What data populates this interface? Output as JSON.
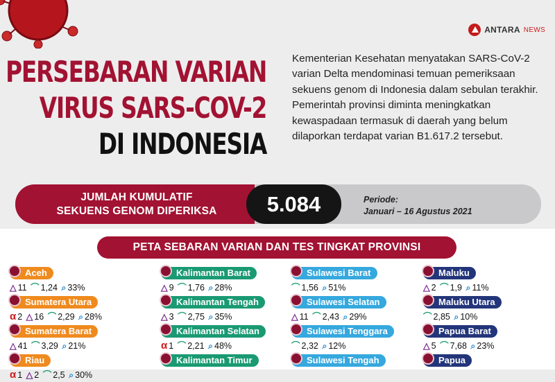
{
  "brand": {
    "name": "ANTARA",
    "suffix": "NEWS"
  },
  "title": {
    "line1": "PERSEBARAN VARIAN",
    "line2": "VIRUS SARS-COV-2",
    "line3": "DI INDONESIA"
  },
  "intro": "Kementerian Kesehatan menyatakan SARS-CoV-2 varian Delta mendominasi temuan pemeriksaan sekuens genom di Indonesia dalam sebulan terakhir. Pemerintah provinsi diminta meningkatkan kewaspadaan termasuk di daerah yang belum dilaporkan terdapat varian B1.617.2 tersebut.",
  "summary": {
    "label1": "JUMLAH KUMULATIF",
    "label2": "SEKUENS GENOM DIPERIKSA",
    "value": "5.084",
    "period_label": "Periode:",
    "period_value": "Januari – 16 Agustus 2021"
  },
  "map_heading": "PETA SEBARAN VARIAN DAN TES TINGKAT PROVINSI",
  "colors": {
    "brand_red": "#a21232",
    "orange": "#ef8a1e",
    "green": "#1a9a72",
    "blue": "#35a8de",
    "navy": "#23357a"
  },
  "provinces": [
    {
      "name": "Aceh",
      "alpha": "",
      "delta": "11",
      "gauge": "1,24",
      "search": "33%"
    },
    {
      "name": "Sumatera Utara",
      "alpha": "2",
      "delta": "16",
      "gauge": "2,29",
      "search": "28%"
    },
    {
      "name": "Sumatera Barat",
      "alpha": "",
      "delta": "41",
      "gauge": "3,29",
      "search": "21%"
    },
    {
      "name": "Riau",
      "alpha": "1",
      "delta": "2",
      "gauge": "2,5",
      "search": "30%"
    },
    {
      "name": "Kalimantan Barat",
      "alpha": "",
      "delta": "9",
      "gauge": "1,76",
      "search": "28%"
    },
    {
      "name": "Kalimantan Tengah",
      "alpha": "",
      "delta": "3",
      "gauge": "2,75",
      "search": "35%"
    },
    {
      "name": "Kalimantan Selatan",
      "alpha": "1",
      "delta": "",
      "gauge": "2,21",
      "search": "48%"
    },
    {
      "name": "Kalimantan Timur",
      "alpha": "",
      "delta": "",
      "gauge": "",
      "search": ""
    },
    {
      "name": "Sulawesi Barat",
      "alpha": "",
      "delta": "",
      "gauge": "1,56",
      "search": "51%"
    },
    {
      "name": "Sulawesi Selatan",
      "alpha": "",
      "delta": "11",
      "gauge": "2,43",
      "search": "29%"
    },
    {
      "name": "Sulawesi Tenggara",
      "alpha": "",
      "delta": "",
      "gauge": "2,32",
      "search": "12%"
    },
    {
      "name": "Sulawesi Tengah",
      "alpha": "",
      "delta": "",
      "gauge": "",
      "search": ""
    },
    {
      "name": "Maluku",
      "alpha": "",
      "delta": "2",
      "gauge": "1,9",
      "search": "11%"
    },
    {
      "name": "Maluku Utara",
      "alpha": "",
      "delta": "",
      "gauge": "2,85",
      "search": "10%"
    },
    {
      "name": "Papua Barat",
      "alpha": "",
      "delta": "5",
      "gauge": "7,68",
      "search": "23%"
    },
    {
      "name": "Papua",
      "alpha": "",
      "delta": "",
      "gauge": "",
      "search": ""
    }
  ]
}
